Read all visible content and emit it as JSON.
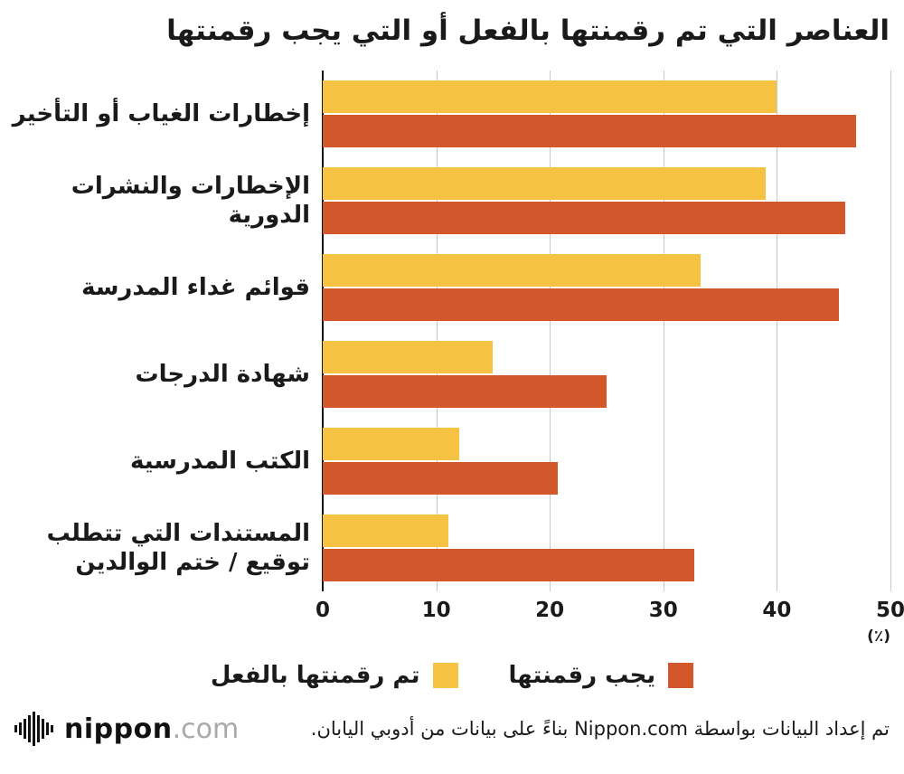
{
  "title": "العناصر التي تم رقمنتها بالفعل أو التي يجب رقمنتها",
  "chart_data": {
    "type": "bar",
    "orientation": "horizontal",
    "categories": [
      "إخطارات الغياب أو التأخير",
      "الإخطارات والنشرات الدورية",
      "قوائم غداء المدرسة",
      "شهادة الدرجات",
      "الكتب المدرسية",
      "المستندات التي تتطلب توقيع / ختم الوالدين"
    ],
    "series": [
      {
        "name": "تم رقمنتها بالفعل",
        "color": "#F5C242",
        "values": [
          40,
          39,
          33.3,
          15,
          12,
          11.1
        ]
      },
      {
        "name": "يجب رقمنتها",
        "color": "#D2572B",
        "values": [
          47,
          46,
          45.5,
          25,
          20.7,
          32.7
        ]
      }
    ],
    "xlim": [
      0,
      50
    ],
    "xticks": [
      0,
      10,
      20,
      30,
      40,
      50
    ],
    "x_unit": "(٪)",
    "grid": "vertical",
    "grid_color": "#c9c9c9",
    "axis_color": "#111111",
    "legend_position": "bottom"
  },
  "footer": {
    "credit": "تم إعداد البيانات بواسطة Nippon.com بناءً على بيانات من أدوبي اليابان.",
    "logo_icon": "nippon-soundwave-icon",
    "logo_main": "nippon",
    "logo_suffix": ".com"
  }
}
